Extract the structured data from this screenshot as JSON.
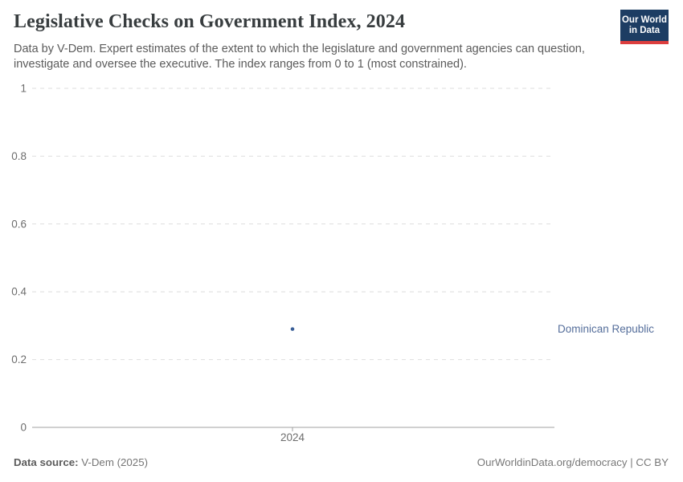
{
  "header": {
    "title": "Legislative Checks on Government Index, 2024",
    "subtitle": "Data by V-Dem. Expert estimates of the extent to which the legislature and government agencies can question, investigate and oversee the executive. The index ranges from 0 to 1 (most constrained).",
    "logo": {
      "line1": "Our World",
      "line2": "in Data",
      "background_color": "#1d3d63",
      "stripe_color": "#dc3e3e"
    }
  },
  "chart_data": {
    "type": "scatter",
    "title": "Legislative Checks on Government Index, 2024",
    "x": [
      2024
    ],
    "series": [
      {
        "name": "Dominican Republic",
        "values": [
          0.29
        ],
        "color": "#3a5e97"
      }
    ],
    "entity_label": "Dominican Republic",
    "entity_label_color": "#556e9b",
    "xlabel": "",
    "ylabel": "",
    "ylim": [
      0,
      1
    ],
    "yticks": [
      0,
      0.2,
      0.4,
      0.6,
      0.8,
      1
    ],
    "xticks": [
      "2024"
    ],
    "grid": "horizontal-dashed",
    "legend_position": "right-of-point",
    "colors": {
      "gridline": "#dedede",
      "axis_line": "#a1a1a1",
      "tick_label": "#6d6d6d"
    }
  },
  "footer": {
    "source_label": "Data source:",
    "source_value": " V-Dem (2025)",
    "attribution": "OurWorldinData.org/democracy | CC BY"
  }
}
